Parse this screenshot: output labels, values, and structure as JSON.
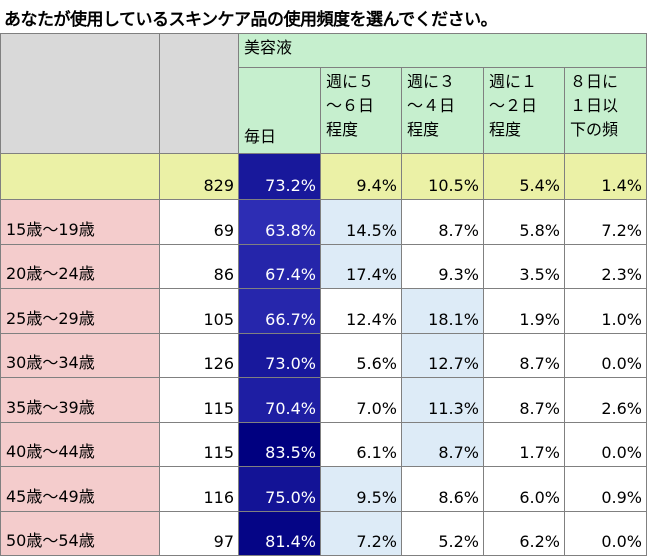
{
  "title": "あなたが使用しているスキンケア品の使用頻度を選んでください。",
  "chart_data": {
    "type": "table",
    "group_header": "美容液",
    "columns": [
      "毎日",
      "週に５\n～６日\n程度",
      "週に３\n～４日\n程度",
      "週に１\n～２日\n程度",
      "８日に\n１日以\n下の頻"
    ],
    "total": {
      "label": "",
      "n": "829",
      "values": [
        "73.2%",
        "9.4%",
        "10.5%",
        "5.4%",
        "1.4%"
      ]
    },
    "rows": [
      {
        "label": "15歳～19歳",
        "n": "69",
        "values": [
          "63.8%",
          "14.5%",
          "8.7%",
          "5.8%",
          "7.2%"
        ]
      },
      {
        "label": "20歳～24歳",
        "n": "86",
        "values": [
          "67.4%",
          "17.4%",
          "9.3%",
          "3.5%",
          "2.3%"
        ]
      },
      {
        "label": "25歳～29歳",
        "n": "105",
        "values": [
          "66.7%",
          "12.4%",
          "18.1%",
          "1.9%",
          "1.0%"
        ]
      },
      {
        "label": "30歳～34歳",
        "n": "126",
        "values": [
          "73.0%",
          "5.6%",
          "12.7%",
          "8.7%",
          "0.0%"
        ]
      },
      {
        "label": "35歳～39歳",
        "n": "115",
        "values": [
          "70.4%",
          "7.0%",
          "11.3%",
          "8.7%",
          "2.6%"
        ]
      },
      {
        "label": "40歳～44歳",
        "n": "115",
        "values": [
          "83.5%",
          "6.1%",
          "8.7%",
          "1.7%",
          "0.0%"
        ]
      },
      {
        "label": "45歳～49歳",
        "n": "116",
        "values": [
          "75.0%",
          "9.5%",
          "8.6%",
          "6.0%",
          "0.9%"
        ]
      },
      {
        "label": "50歳～54歳",
        "n": "97",
        "values": [
          "81.4%",
          "7.2%",
          "5.2%",
          "6.2%",
          "0.0%"
        ]
      }
    ]
  },
  "colors": {
    "header_gray": "#d9d9d9",
    "header_green": "#c6efce",
    "total_row": "#ebf1a6",
    "age_label": "#f4cccc",
    "highlight_light_blue": "#ddebf7",
    "heat_dark": "#000080",
    "heat_mid": "#2d2db4"
  }
}
